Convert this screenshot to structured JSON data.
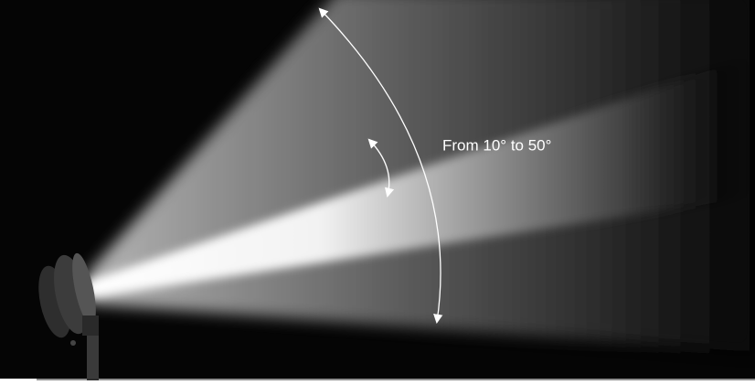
{
  "annotation": {
    "label": "From 10° to 50°"
  }
}
